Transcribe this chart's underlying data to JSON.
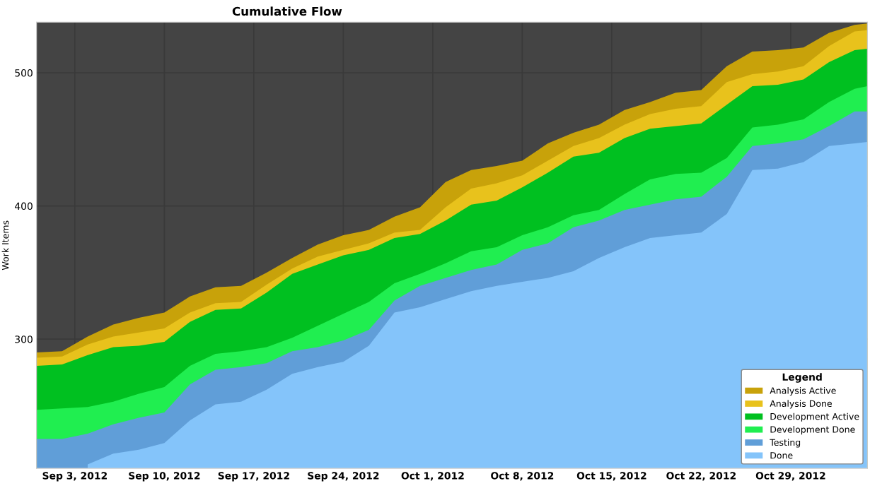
{
  "chart_data": {
    "type": "area",
    "title": "Cumulative Flow",
    "ylabel": "Work Items",
    "legend_title": "Legend",
    "legend": "bottom right",
    "grid": true,
    "x": [
      "2012-08-31",
      "2012-09-02",
      "2012-09-04",
      "2012-09-06",
      "2012-09-08",
      "2012-09-10",
      "2012-09-12",
      "2012-09-14",
      "2012-09-16",
      "2012-09-18",
      "2012-09-20",
      "2012-09-22",
      "2012-09-24",
      "2012-09-26",
      "2012-09-28",
      "2012-09-30",
      "2012-10-02",
      "2012-10-04",
      "2012-10-06",
      "2012-10-08",
      "2012-10-10",
      "2012-10-12",
      "2012-10-14",
      "2012-10-16",
      "2012-10-18",
      "2012-10-20",
      "2012-10-22",
      "2012-10-24",
      "2012-10-26",
      "2012-10-28",
      "2012-10-30",
      "2012-11-01",
      "2012-11-03",
      "2012-11-04"
    ],
    "series": [
      {
        "name": "Analysis Active",
        "color": "#c8a20a",
        "values": [
          290,
          291,
          302,
          311,
          316,
          320,
          332,
          339,
          340,
          350,
          361,
          371,
          378,
          382,
          392,
          399,
          418,
          427,
          430,
          434,
          447,
          455,
          461,
          472,
          478,
          485,
          487,
          505,
          516,
          517,
          519,
          530,
          536,
          537
        ]
      },
      {
        "name": "Analysis Done",
        "color": "#e8c21c",
        "values": [
          286,
          287,
          296,
          302,
          305,
          308,
          320,
          327,
          328,
          341,
          353,
          362,
          367,
          372,
          380,
          382,
          399,
          413,
          417,
          423,
          434,
          445,
          451,
          461,
          469,
          473,
          475,
          493,
          499,
          501,
          505,
          520,
          531,
          532
        ]
      },
      {
        "name": "Development Active",
        "color": "#00c020",
        "values": [
          280,
          281,
          288,
          294,
          295,
          298,
          313,
          322,
          323,
          335,
          349,
          356,
          363,
          367,
          376,
          379,
          389,
          401,
          404,
          414,
          425,
          437,
          440,
          451,
          458,
          460,
          462,
          476,
          490,
          491,
          495,
          508,
          517,
          518
        ]
      },
      {
        "name": "Development Done",
        "color": "#20ee50",
        "values": [
          247,
          248,
          249,
          253,
          259,
          264,
          280,
          289,
          291,
          294,
          301,
          310,
          319,
          328,
          342,
          349,
          357,
          366,
          369,
          378,
          384,
          393,
          397,
          409,
          420,
          424,
          425,
          436,
          459,
          461,
          465,
          478,
          488,
          490
        ]
      },
      {
        "name": "Testing",
        "color": "#609ed8",
        "values": [
          225,
          225,
          229,
          236,
          241,
          245,
          266,
          277,
          279,
          282,
          291,
          294,
          299,
          307,
          329,
          340,
          346,
          352,
          356,
          367,
          372,
          384,
          389,
          397,
          401,
          405,
          407,
          422,
          445,
          447,
          450,
          460,
          471,
          471
        ]
      },
      {
        "name": "Done",
        "color": "#84c4fa",
        "values": [
          null,
          null,
          206,
          214,
          217,
          222,
          239,
          251,
          253,
          262,
          274,
          279,
          283,
          295,
          320,
          324,
          330,
          336,
          340,
          343,
          346,
          351,
          361,
          369,
          376,
          378,
          380,
          394,
          427,
          428,
          433,
          445,
          447,
          448
        ]
      }
    ],
    "xlim": [
      "2012-08-31",
      "2012-11-04"
    ],
    "ylim": [
      203,
      538
    ],
    "yticks": [
      300,
      400,
      500
    ],
    "xticks": [
      {
        "value": "2012-09-03",
        "label": "Sep 3, 2012"
      },
      {
        "value": "2012-09-10",
        "label": "Sep 10, 2012"
      },
      {
        "value": "2012-09-17",
        "label": "Sep 17, 2012"
      },
      {
        "value": "2012-09-24",
        "label": "Sep 24, 2012"
      },
      {
        "value": "2012-10-01",
        "label": "Oct 1, 2012"
      },
      {
        "value": "2012-10-08",
        "label": "Oct 8, 2012"
      },
      {
        "value": "2012-10-15",
        "label": "Oct 15, 2012"
      },
      {
        "value": "2012-10-22",
        "label": "Oct 22, 2012"
      },
      {
        "value": "2012-10-29",
        "label": "Oct 29, 2012"
      }
    ]
  }
}
